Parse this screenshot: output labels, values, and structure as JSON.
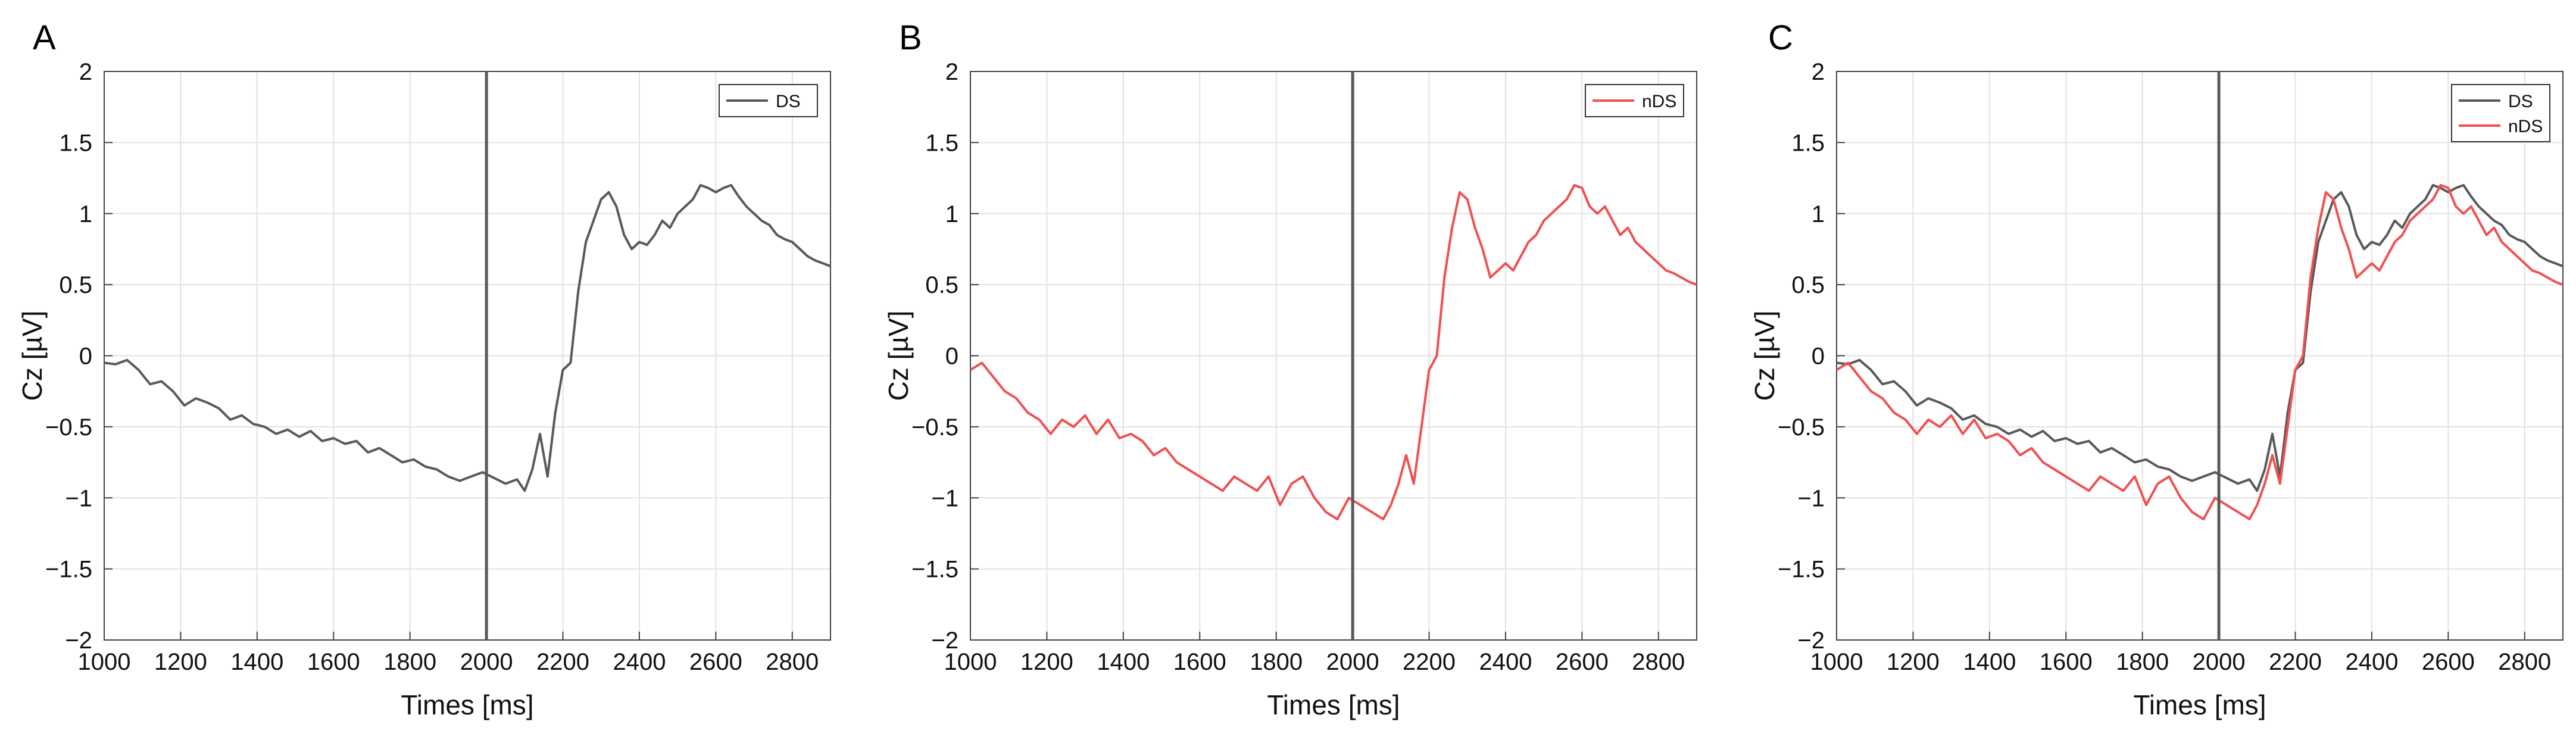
{
  "colors": {
    "DS": "#595959",
    "nDS": "#f05050",
    "marker": "#595959",
    "grid": "#e2e2e2",
    "axis": "#444444"
  },
  "chart_data": [
    {
      "panel": "A",
      "type": "line",
      "xlabel": "Times [ms]",
      "ylabel": "Cz [µV]",
      "xlim": [
        1000,
        2900
      ],
      "ylim": [
        -2,
        2
      ],
      "xticks": [
        1000,
        1200,
        1400,
        1600,
        1800,
        2000,
        2200,
        2400,
        2600,
        2800
      ],
      "yticks": [
        -2,
        -1.5,
        -1,
        -0.5,
        0,
        0.5,
        1,
        1.5,
        2
      ],
      "grid": true,
      "legend_position": "top-right",
      "vline": 2000,
      "series": [
        {
          "name": "DS",
          "color": "#595959",
          "x": [
            1000,
            1030,
            1060,
            1090,
            1120,
            1150,
            1180,
            1210,
            1240,
            1270,
            1300,
            1330,
            1360,
            1390,
            1420,
            1450,
            1480,
            1510,
            1540,
            1570,
            1600,
            1630,
            1660,
            1690,
            1720,
            1750,
            1780,
            1810,
            1840,
            1870,
            1900,
            1930,
            1960,
            1990,
            2020,
            2050,
            2080,
            2100,
            2120,
            2140,
            2160,
            2180,
            2200,
            2220,
            2240,
            2260,
            2280,
            2300,
            2320,
            2340,
            2360,
            2380,
            2400,
            2420,
            2440,
            2460,
            2480,
            2500,
            2520,
            2540,
            2560,
            2580,
            2600,
            2620,
            2640,
            2660,
            2680,
            2700,
            2720,
            2740,
            2760,
            2780,
            2800,
            2820,
            2840,
            2860,
            2880,
            2900
          ],
          "y": [
            -0.05,
            -0.06,
            -0.03,
            -0.1,
            -0.2,
            -0.18,
            -0.25,
            -0.35,
            -0.3,
            -0.33,
            -0.37,
            -0.45,
            -0.42,
            -0.48,
            -0.5,
            -0.55,
            -0.52,
            -0.57,
            -0.53,
            -0.6,
            -0.58,
            -0.62,
            -0.6,
            -0.68,
            -0.65,
            -0.7,
            -0.75,
            -0.73,
            -0.78,
            -0.8,
            -0.85,
            -0.88,
            -0.85,
            -0.82,
            -0.86,
            -0.9,
            -0.87,
            -0.95,
            -0.8,
            -0.55,
            -0.85,
            -0.4,
            -0.1,
            -0.05,
            0.45,
            0.8,
            0.95,
            1.1,
            1.15,
            1.05,
            0.85,
            0.75,
            0.8,
            0.78,
            0.85,
            0.95,
            0.9,
            1.0,
            1.05,
            1.1,
            1.2,
            1.18,
            1.15,
            1.18,
            1.2,
            1.12,
            1.05,
            1.0,
            0.95,
            0.92,
            0.85,
            0.82,
            0.8,
            0.75,
            0.7,
            0.67,
            0.65,
            0.63
          ]
        }
      ]
    },
    {
      "panel": "B",
      "type": "line",
      "xlabel": "Times [ms]",
      "ylabel": "Cz [µV]",
      "xlim": [
        1000,
        2900
      ],
      "ylim": [
        -2,
        2
      ],
      "xticks": [
        1000,
        1200,
        1400,
        1600,
        1800,
        2000,
        2200,
        2400,
        2600,
        2800
      ],
      "yticks": [
        -2,
        -1.5,
        -1,
        -0.5,
        0,
        0.5,
        1,
        1.5,
        2
      ],
      "grid": true,
      "legend_position": "top-right",
      "vline": 2000,
      "series": [
        {
          "name": "nDS",
          "color": "#f05050",
          "x": [
            1000,
            1030,
            1060,
            1090,
            1120,
            1150,
            1180,
            1210,
            1240,
            1270,
            1300,
            1330,
            1360,
            1390,
            1420,
            1450,
            1480,
            1510,
            1540,
            1570,
            1600,
            1630,
            1660,
            1690,
            1720,
            1750,
            1780,
            1810,
            1840,
            1870,
            1900,
            1930,
            1960,
            1990,
            2020,
            2050,
            2080,
            2100,
            2120,
            2140,
            2160,
            2180,
            2200,
            2220,
            2240,
            2260,
            2280,
            2300,
            2320,
            2340,
            2360,
            2380,
            2400,
            2420,
            2440,
            2460,
            2480,
            2500,
            2520,
            2540,
            2560,
            2580,
            2600,
            2620,
            2640,
            2660,
            2680,
            2700,
            2720,
            2740,
            2760,
            2780,
            2800,
            2820,
            2840,
            2860,
            2880,
            2900
          ],
          "y": [
            -0.1,
            -0.05,
            -0.15,
            -0.25,
            -0.3,
            -0.4,
            -0.45,
            -0.55,
            -0.45,
            -0.5,
            -0.42,
            -0.55,
            -0.45,
            -0.58,
            -0.55,
            -0.6,
            -0.7,
            -0.65,
            -0.75,
            -0.8,
            -0.85,
            -0.9,
            -0.95,
            -0.85,
            -0.9,
            -0.95,
            -0.85,
            -1.05,
            -0.9,
            -0.85,
            -1.0,
            -1.1,
            -1.15,
            -1.0,
            -1.05,
            -1.1,
            -1.15,
            -1.05,
            -0.9,
            -0.7,
            -0.9,
            -0.5,
            -0.1,
            0.0,
            0.55,
            0.9,
            1.15,
            1.1,
            0.9,
            0.75,
            0.55,
            0.6,
            0.65,
            0.6,
            0.7,
            0.8,
            0.85,
            0.95,
            1.0,
            1.05,
            1.1,
            1.2,
            1.18,
            1.05,
            1.0,
            1.05,
            0.95,
            0.85,
            0.9,
            0.8,
            0.75,
            0.7,
            0.65,
            0.6,
            0.58,
            0.55,
            0.52,
            0.5
          ]
        }
      ]
    },
    {
      "panel": "C",
      "type": "line",
      "xlabel": "Times [ms]",
      "ylabel": "Cz [µV]",
      "xlim": [
        1000,
        2900
      ],
      "ylim": [
        -2,
        2
      ],
      "xticks": [
        1000,
        1200,
        1400,
        1600,
        1800,
        2000,
        2200,
        2400,
        2600,
        2800
      ],
      "yticks": [
        -2,
        -1.5,
        -1,
        -0.5,
        0,
        0.5,
        1,
        1.5,
        2
      ],
      "grid": true,
      "legend_position": "top-right",
      "vline": 2000,
      "series": [
        {
          "name": "DS",
          "color": "#595959",
          "x": [
            1000,
            1030,
            1060,
            1090,
            1120,
            1150,
            1180,
            1210,
            1240,
            1270,
            1300,
            1330,
            1360,
            1390,
            1420,
            1450,
            1480,
            1510,
            1540,
            1570,
            1600,
            1630,
            1660,
            1690,
            1720,
            1750,
            1780,
            1810,
            1840,
            1870,
            1900,
            1930,
            1960,
            1990,
            2020,
            2050,
            2080,
            2100,
            2120,
            2140,
            2160,
            2180,
            2200,
            2220,
            2240,
            2260,
            2280,
            2300,
            2320,
            2340,
            2360,
            2380,
            2400,
            2420,
            2440,
            2460,
            2480,
            2500,
            2520,
            2540,
            2560,
            2580,
            2600,
            2620,
            2640,
            2660,
            2680,
            2700,
            2720,
            2740,
            2760,
            2780,
            2800,
            2820,
            2840,
            2860,
            2880,
            2900
          ],
          "y": [
            -0.05,
            -0.06,
            -0.03,
            -0.1,
            -0.2,
            -0.18,
            -0.25,
            -0.35,
            -0.3,
            -0.33,
            -0.37,
            -0.45,
            -0.42,
            -0.48,
            -0.5,
            -0.55,
            -0.52,
            -0.57,
            -0.53,
            -0.6,
            -0.58,
            -0.62,
            -0.6,
            -0.68,
            -0.65,
            -0.7,
            -0.75,
            -0.73,
            -0.78,
            -0.8,
            -0.85,
            -0.88,
            -0.85,
            -0.82,
            -0.86,
            -0.9,
            -0.87,
            -0.95,
            -0.8,
            -0.55,
            -0.85,
            -0.4,
            -0.1,
            -0.05,
            0.45,
            0.8,
            0.95,
            1.1,
            1.15,
            1.05,
            0.85,
            0.75,
            0.8,
            0.78,
            0.85,
            0.95,
            0.9,
            1.0,
            1.05,
            1.1,
            1.2,
            1.18,
            1.15,
            1.18,
            1.2,
            1.12,
            1.05,
            1.0,
            0.95,
            0.92,
            0.85,
            0.82,
            0.8,
            0.75,
            0.7,
            0.67,
            0.65,
            0.63
          ]
        },
        {
          "name": "nDS",
          "color": "#f05050",
          "x": [
            1000,
            1030,
            1060,
            1090,
            1120,
            1150,
            1180,
            1210,
            1240,
            1270,
            1300,
            1330,
            1360,
            1390,
            1420,
            1450,
            1480,
            1510,
            1540,
            1570,
            1600,
            1630,
            1660,
            1690,
            1720,
            1750,
            1780,
            1810,
            1840,
            1870,
            1900,
            1930,
            1960,
            1990,
            2020,
            2050,
            2080,
            2100,
            2120,
            2140,
            2160,
            2180,
            2200,
            2220,
            2240,
            2260,
            2280,
            2300,
            2320,
            2340,
            2360,
            2380,
            2400,
            2420,
            2440,
            2460,
            2480,
            2500,
            2520,
            2540,
            2560,
            2580,
            2600,
            2620,
            2640,
            2660,
            2680,
            2700,
            2720,
            2740,
            2760,
            2780,
            2800,
            2820,
            2840,
            2860,
            2880,
            2900
          ],
          "y": [
            -0.1,
            -0.05,
            -0.15,
            -0.25,
            -0.3,
            -0.4,
            -0.45,
            -0.55,
            -0.45,
            -0.5,
            -0.42,
            -0.55,
            -0.45,
            -0.58,
            -0.55,
            -0.6,
            -0.7,
            -0.65,
            -0.75,
            -0.8,
            -0.85,
            -0.9,
            -0.95,
            -0.85,
            -0.9,
            -0.95,
            -0.85,
            -1.05,
            -0.9,
            -0.85,
            -1.0,
            -1.1,
            -1.15,
            -1.0,
            -1.05,
            -1.1,
            -1.15,
            -1.05,
            -0.9,
            -0.7,
            -0.9,
            -0.5,
            -0.1,
            0.0,
            0.55,
            0.9,
            1.15,
            1.1,
            0.9,
            0.75,
            0.55,
            0.6,
            0.65,
            0.6,
            0.7,
            0.8,
            0.85,
            0.95,
            1.0,
            1.05,
            1.1,
            1.2,
            1.18,
            1.05,
            1.0,
            1.05,
            0.95,
            0.85,
            0.9,
            0.8,
            0.75,
            0.7,
            0.65,
            0.6,
            0.58,
            0.55,
            0.52,
            0.5
          ]
        }
      ]
    }
  ]
}
